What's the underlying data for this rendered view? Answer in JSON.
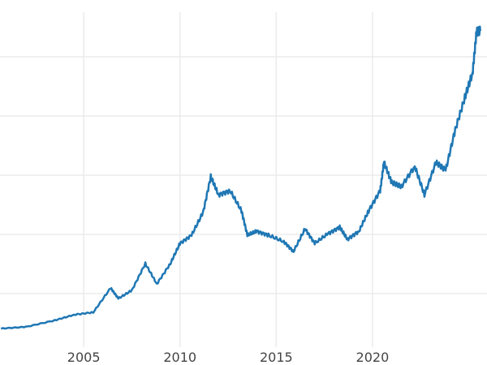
{
  "chart_data": {
    "type": "line",
    "title": "",
    "xlabel": "",
    "ylabel": "",
    "x_ticks": [
      "2005",
      "2010",
      "2015",
      "2020"
    ],
    "x_tick_values": [
      2005,
      2010,
      2015,
      2020
    ],
    "y_gridlines": [
      600,
      1200,
      1800,
      2400,
      3000
    ],
    "xlim": [
      2000.65,
      2025.95
    ],
    "ylim": [
      0,
      3575
    ],
    "grid": true,
    "legend": "none",
    "colors": {
      "line": "#1f77b4",
      "grid": "#ebebeb"
    },
    "series": [
      {
        "x": [
          2000.7,
          2002,
          2003.5,
          2004.5,
          2005.5,
          2006.4,
          2006.8,
          2007.5,
          2008.2,
          2008.8,
          2009.5,
          2010,
          2010.6,
          2011.2,
          2011.6,
          2012,
          2012.6,
          2013.2,
          2013.5,
          2014,
          2014.6,
          2015.4,
          2015.9,
          2016.5,
          2017,
          2017.7,
          2018.3,
          2018.7,
          2019.3,
          2019.8,
          2020.4,
          2020.6,
          2021,
          2021.5,
          2022.2,
          2022.7,
          2023.3,
          2023.8,
          2024.3,
          2024.8,
          2025.2,
          2025.4,
          2025.6
        ],
        "y": [
          246,
          263,
          329,
          386,
          411,
          657,
          550,
          633,
          904,
          698,
          904,
          1109,
          1191,
          1422,
          1783,
          1602,
          1643,
          1438,
          1191,
          1232,
          1191,
          1126,
          1027,
          1257,
          1109,
          1208,
          1273,
          1150,
          1232,
          1438,
          1643,
          1931,
          1726,
          1684,
          1890,
          1602,
          1931,
          1849,
          2260,
          2588,
          2835,
          3246,
          3262
        ]
      }
    ]
  }
}
